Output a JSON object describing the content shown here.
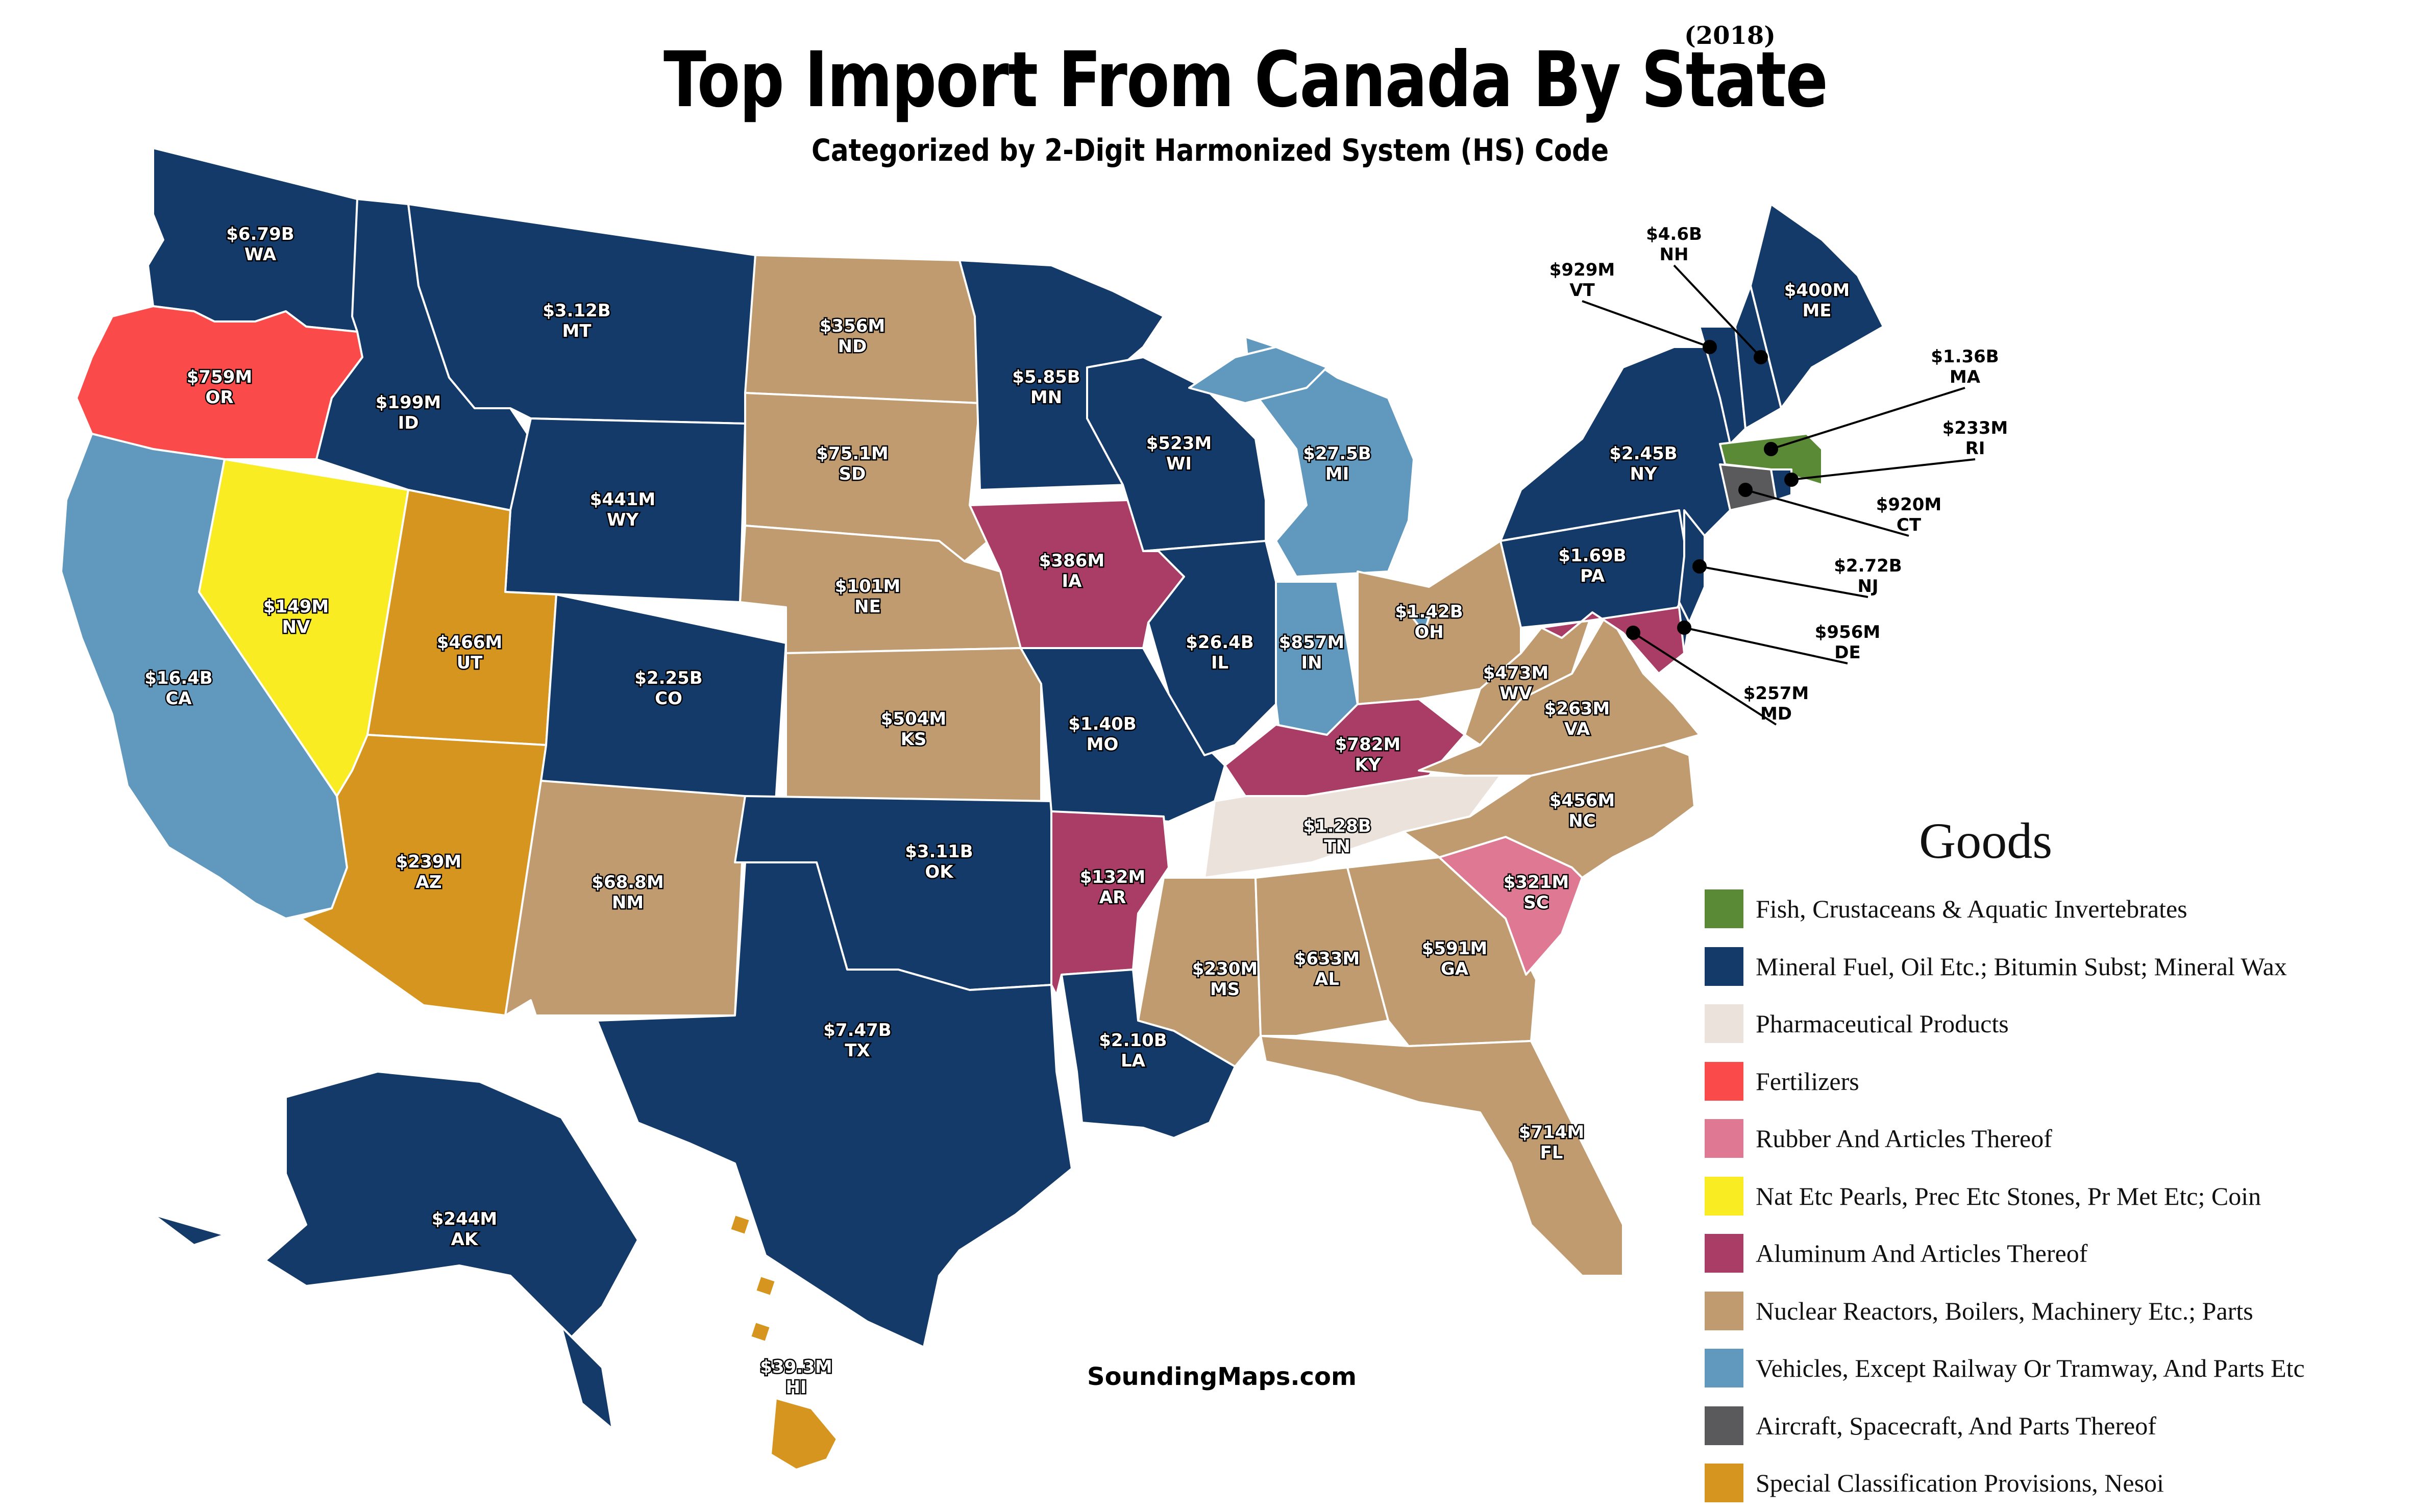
{
  "title": "Top Import From Canada By State",
  "year": "(2018)",
  "subtitle": "Categorized by 2-Digit Harmonized System (HS) Code",
  "credit": "SoundingMaps.com",
  "legend": {
    "title": "Goods",
    "items": [
      {
        "key": "fish",
        "label": "Fish, Crustaceans & Aquatic Invertebrates",
        "color": "#5a8a35"
      },
      {
        "key": "mineral",
        "label": "Mineral Fuel, Oil Etc.; Bitumin Subst; Mineral Wax",
        "color": "#133a68"
      },
      {
        "key": "pharma",
        "label": "Pharmaceutical Products",
        "color": "#ebe2dc"
      },
      {
        "key": "fert",
        "label": "Fertilizers",
        "color": "#fb4a4a"
      },
      {
        "key": "rubber",
        "label": "Rubber And Articles Thereof",
        "color": "#de7893"
      },
      {
        "key": "pearls",
        "label": "Nat Etc Pearls, Prec Etc Stones, Pr Met Etc; Coin",
        "color": "#f9ec23"
      },
      {
        "key": "alum",
        "label": "Aluminum And Articles Thereof",
        "color": "#aa3d66"
      },
      {
        "key": "nuclear",
        "label": "Nuclear Reactors, Boilers, Machinery Etc.; Parts",
        "color": "#bf9b6f"
      },
      {
        "key": "vehicles",
        "label": "Vehicles, Except Railway Or Tramway, And Parts Etc",
        "color": "#6199be"
      },
      {
        "key": "aircraft",
        "label": "Aircraft, Spacecraft, And Parts Thereof",
        "color": "#5a5a5d"
      },
      {
        "key": "special",
        "label": "Special Classification Provisions, Nesoi",
        "color": "#d6951f"
      }
    ]
  },
  "states": {
    "WA": {
      "value": "$6.79B",
      "category": "mineral"
    },
    "OR": {
      "value": "$759M",
      "category": "fert"
    },
    "CA": {
      "value": "$16.4B",
      "category": "vehicles"
    },
    "NV": {
      "value": "$149M",
      "category": "pearls"
    },
    "ID": {
      "value": "$199M",
      "category": "mineral"
    },
    "MT": {
      "value": "$3.12B",
      "category": "mineral"
    },
    "WY": {
      "value": "$441M",
      "category": "mineral"
    },
    "UT": {
      "value": "$466M",
      "category": "special"
    },
    "AZ": {
      "value": "$239M",
      "category": "special"
    },
    "CO": {
      "value": "$2.25B",
      "category": "mineral"
    },
    "NM": {
      "value": "$68.8M",
      "category": "nuclear"
    },
    "ND": {
      "value": "$356M",
      "category": "nuclear"
    },
    "SD": {
      "value": "$75.1M",
      "category": "nuclear"
    },
    "NE": {
      "value": "$101M",
      "category": "nuclear"
    },
    "KS": {
      "value": "$504M",
      "category": "nuclear"
    },
    "OK": {
      "value": "$3.11B",
      "category": "mineral"
    },
    "TX": {
      "value": "$7.47B",
      "category": "mineral"
    },
    "MN": {
      "value": "$5.85B",
      "category": "mineral"
    },
    "IA": {
      "value": "$386M",
      "category": "alum"
    },
    "MO": {
      "value": "$1.40B",
      "category": "mineral"
    },
    "AR": {
      "value": "$132M",
      "category": "alum"
    },
    "LA": {
      "value": "$2.10B",
      "category": "mineral"
    },
    "WI": {
      "value": "$523M",
      "category": "mineral"
    },
    "IL": {
      "value": "$26.4B",
      "category": "mineral"
    },
    "MI": {
      "value": "$27.5B",
      "category": "vehicles"
    },
    "IN": {
      "value": "$857M",
      "category": "vehicles"
    },
    "OH": {
      "value": "$1.42B",
      "category": "nuclear"
    },
    "KY": {
      "value": "$782M",
      "category": "alum"
    },
    "TN": {
      "value": "$1.28B",
      "category": "pharma"
    },
    "MS": {
      "value": "$230M",
      "category": "nuclear"
    },
    "AL": {
      "value": "$633M",
      "category": "nuclear"
    },
    "GA": {
      "value": "$591M",
      "category": "nuclear"
    },
    "FL": {
      "value": "$714M",
      "category": "nuclear"
    },
    "SC": {
      "value": "$321M",
      "category": "rubber"
    },
    "NC": {
      "value": "$456M",
      "category": "nuclear"
    },
    "VA": {
      "value": "$263M",
      "category": "nuclear"
    },
    "WV": {
      "value": "$473M",
      "category": "nuclear"
    },
    "PA": {
      "value": "$1.69B",
      "category": "mineral"
    },
    "NY": {
      "value": "$2.45B",
      "category": "mineral"
    },
    "VT": {
      "value": "$929M",
      "category": "mineral"
    },
    "NH": {
      "value": "$4.6B",
      "category": "mineral"
    },
    "ME": {
      "value": "$400M",
      "category": "mineral"
    },
    "MA": {
      "value": "$1.36B",
      "category": "fish"
    },
    "RI": {
      "value": "$233M",
      "category": "mineral"
    },
    "CT": {
      "value": "$920M",
      "category": "aircraft"
    },
    "NJ": {
      "value": "$2.72B",
      "category": "mineral"
    },
    "DE": {
      "value": "$956M",
      "category": "mineral"
    },
    "MD": {
      "value": "$257M",
      "category": "alum"
    },
    "AK": {
      "value": "$244M",
      "category": "mineral"
    },
    "HI": {
      "value": "$39.3M",
      "category": "special"
    }
  }
}
